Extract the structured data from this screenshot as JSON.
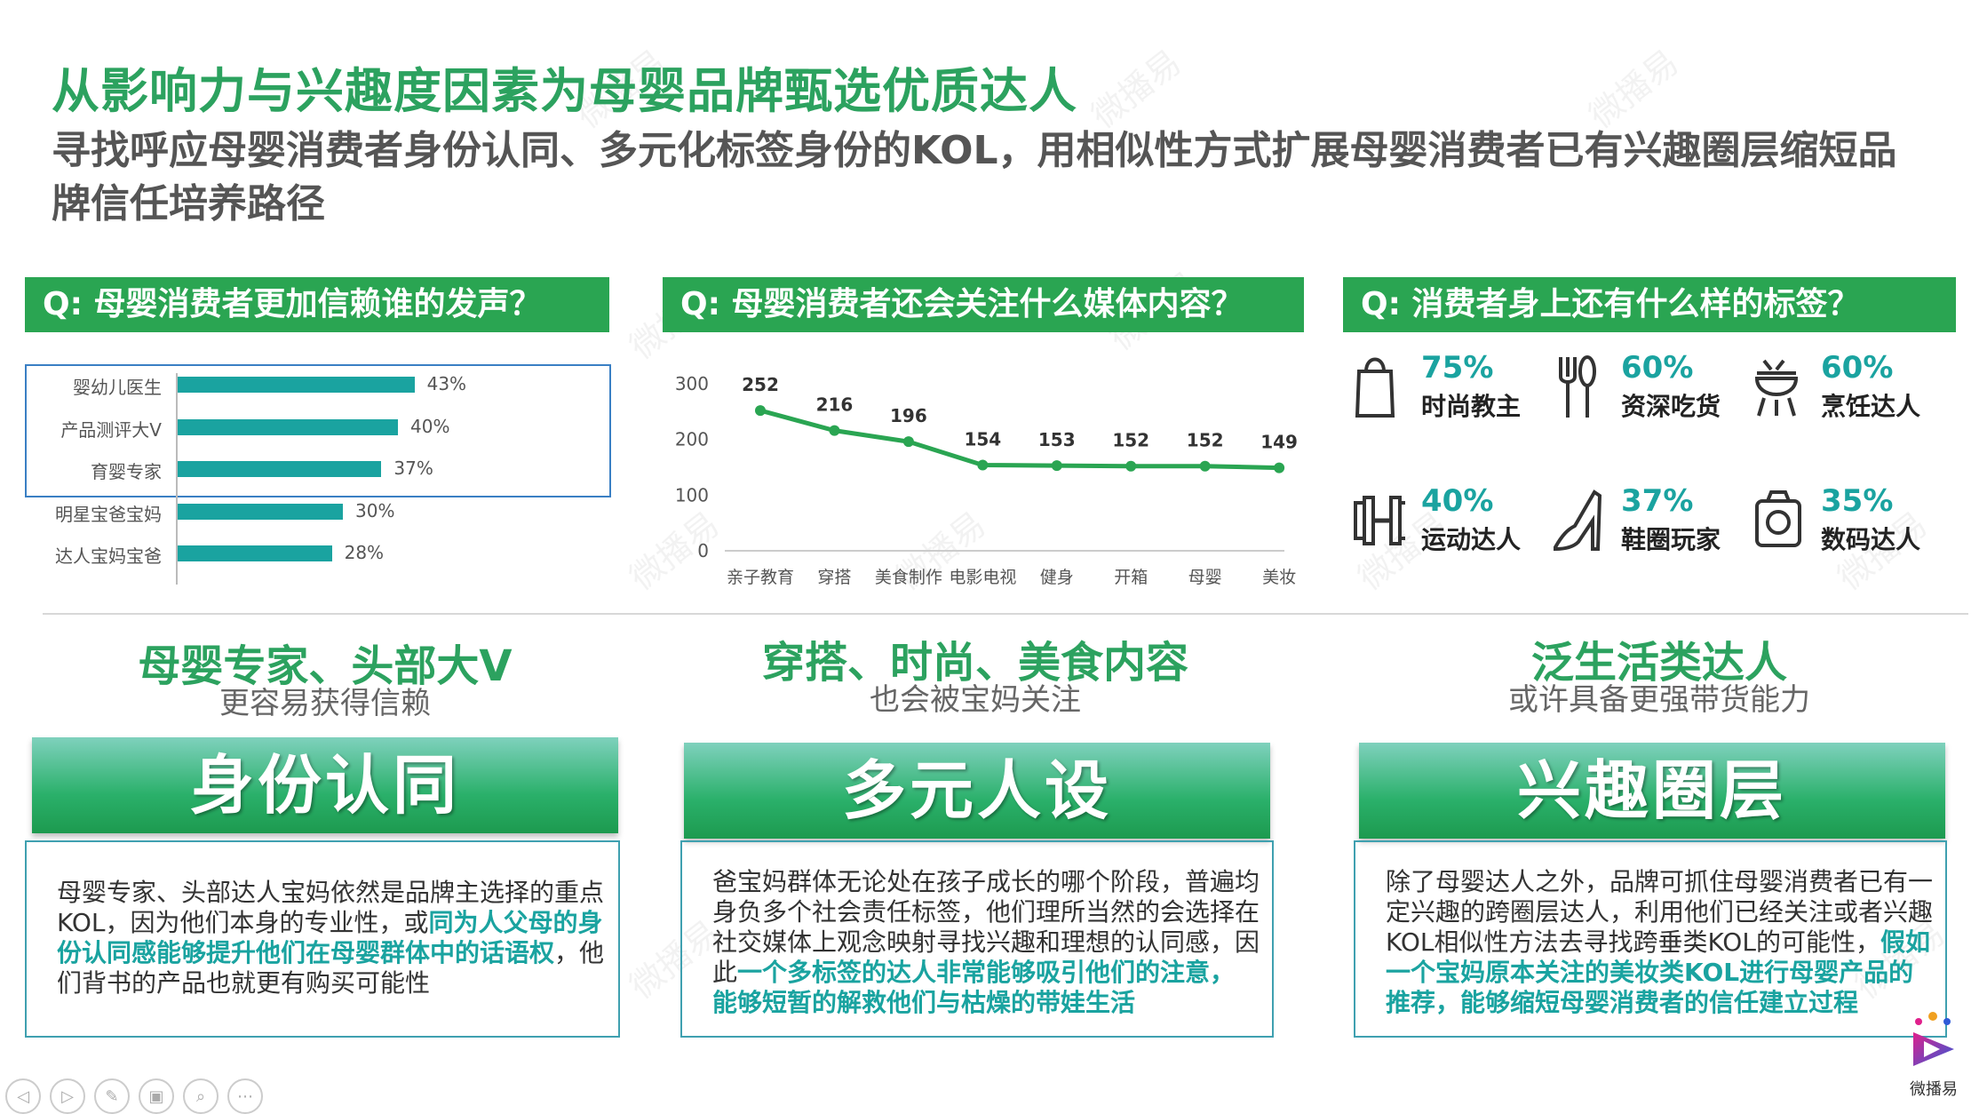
{
  "header": {
    "title": "从影响力与兴趣度因素为母婴品牌甄选优质达人",
    "subtitle": "寻找呼应母婴消费者身份认同、多元化标签身份的KOL，用相似性方式扩展母婴消费者已有兴趣圈层缩短品牌信任培养路径"
  },
  "watermark": "微播易",
  "panels": {
    "left": {
      "question": "Q: 母婴消费者更加信赖谁的发声？",
      "chart_data": {
        "type": "bar",
        "orientation": "horizontal",
        "categories": [
          "婴幼儿医生",
          "产品测评大V",
          "育婴专家",
          "明星宝爸宝妈",
          "达人宝妈宝爸"
        ],
        "values": [
          43,
          40,
          37,
          30,
          28
        ],
        "value_labels": [
          "43%",
          "40%",
          "37%",
          "30%",
          "28%"
        ],
        "unit": "%",
        "highlighted_top": 3,
        "bar_color": "#1aa3a0"
      }
    },
    "middle": {
      "question": "Q: 母婴消费者还会关注什么媒体内容？",
      "chart_data": {
        "type": "line",
        "categories": [
          "亲子教育",
          "穿搭",
          "美食制作",
          "电影电视",
          "健身",
          "开箱",
          "母婴",
          "美妆"
        ],
        "values": [
          252,
          216,
          196,
          154,
          153,
          152,
          152,
          149
        ],
        "yticks": [
          "300",
          "200",
          "100",
          "0"
        ],
        "ylim": [
          0,
          300
        ],
        "line_color": "#2aa552"
      }
    },
    "right": {
      "question": "Q: 消费者身上还有什么样的标签？",
      "tags": [
        {
          "pct": "75%",
          "label": "时尚教主",
          "icon": "shopping-bag-icon"
        },
        {
          "pct": "60%",
          "label": "资深吃货",
          "icon": "fork-spoon-icon"
        },
        {
          "pct": "60%",
          "label": "烹饪达人",
          "icon": "grill-icon"
        },
        {
          "pct": "40%",
          "label": "运动达人",
          "icon": "dumbbell-icon"
        },
        {
          "pct": "37%",
          "label": "鞋圈玩家",
          "icon": "high-heel-icon"
        },
        {
          "pct": "35%",
          "label": "数码达人",
          "icon": "camera-icon"
        }
      ]
    }
  },
  "summaries": [
    {
      "head": "母婴专家、头部大V",
      "sub": "更容易获得信赖"
    },
    {
      "head": "穿搭、时尚、美食内容",
      "sub": "也会被宝妈关注"
    },
    {
      "head": "泛生活类达人",
      "sub": "或许具备更强带货能力"
    }
  ],
  "cards": [
    {
      "banner": "身份认同",
      "text_a": "母婴专家、头部达人宝妈依然是品牌主选择的重点KOL，因为他们本身的专业性，或",
      "text_hl": "同为人父母的身份认同感能够提升他们在母婴群体中的话语权",
      "text_b": "，他们背书的产品也就更有购买可能性"
    },
    {
      "banner": "多元人设",
      "text_a": "爸宝妈群体无论处在孩子成长的哪个阶段，普遍均身负多个社会责任标签，他们理所当然的会选择在社交媒体上观念映射寻找兴趣和理想的认同感，因此",
      "text_hl": "一个多标签的达人非常能够吸引他们的注意，能够短暂的解救他们与枯燥的带娃生活",
      "text_b": ""
    },
    {
      "banner": "兴趣圈层",
      "text_a": "除了母婴达人之外，品牌可抓住母婴消费者已有一定兴趣的跨圈层达人，利用他们已经关注或者兴趣KOL相似性方法去寻找跨垂类KOL的可能性，",
      "text_hl": "假如一个宝妈原本关注的美妆类KOL进行母婴产品的推荐，能够缩短母婴消费者的信任建立过程",
      "text_b": ""
    }
  ],
  "logo": {
    "text": "微播易"
  },
  "colors": {
    "green": "#2aa552",
    "teal": "#1aa3a0",
    "box_border": "#3a7fc4"
  }
}
